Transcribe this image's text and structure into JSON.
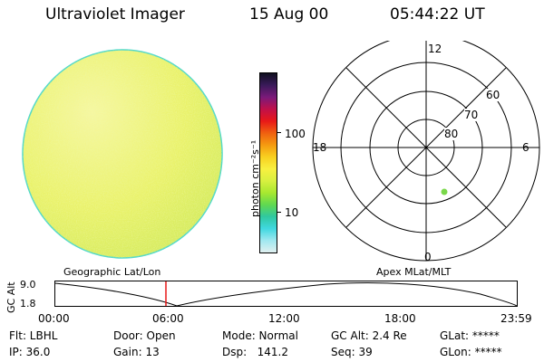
{
  "header": {
    "title": "Ultraviolet Imager",
    "date": "15 Aug 00",
    "time": "05:44:22 UT"
  },
  "colorbar": {
    "label": "photon cm⁻²s⁻¹",
    "ticks": [
      "100",
      "10"
    ],
    "colors": [
      "#101020",
      "#3a1a5a",
      "#7a1a7a",
      "#c0104a",
      "#e81818",
      "#f06010",
      "#f59a10",
      "#f8d020",
      "#f8f040",
      "#d8f040",
      "#a8e830",
      "#60d850",
      "#30c8a0",
      "#40d8e0",
      "#a0e8f0",
      "#e0f0f0"
    ]
  },
  "polar": {
    "labels": {
      "top": "12",
      "bottom": "0",
      "left": "18",
      "right": "6"
    },
    "rings": [
      "60",
      "70",
      "80"
    ]
  },
  "timeline": {
    "left_label": "Geographic Lat/Lon",
    "right_label": "Apex MLat/MLT",
    "axis_label": "GC Alt",
    "y_ticks": [
      "9.0",
      "1.8"
    ],
    "x_ticks": [
      "00:00",
      "06:00",
      "12:00",
      "18:00",
      "23:59"
    ]
  },
  "info": {
    "row1": [
      "Flt: LBHL",
      "Door: Open",
      "Mode: Normal",
      "GC Alt: 2.4 Re",
      "GLat: *****"
    ],
    "row2": [
      "IP: 36.0",
      "Gain: 13",
      "Dsp:   141.2",
      "Seq: 39",
      "GLon: *****"
    ]
  }
}
